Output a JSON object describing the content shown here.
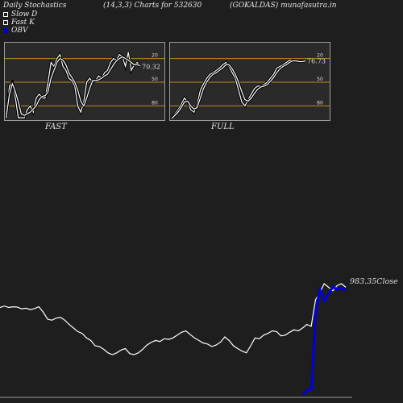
{
  "header": {
    "left": "Daily Stochastics",
    "center": "(14,3,3) Charts for 532630",
    "right": "(GOKALDAS) munafasutra.in"
  },
  "legend": [
    {
      "label": "Slow  D",
      "color": "#ffffff"
    },
    {
      "label": "Fast K",
      "color": "#ffffff"
    },
    {
      "label": "OBV",
      "color": "#0000cc"
    }
  ],
  "chart_data": [
    {
      "type": "line",
      "title": "FAST",
      "ylim": [
        0,
        100
      ],
      "gridlines": [
        20,
        50,
        80
      ],
      "tick_labels": [
        "80",
        "50",
        "20"
      ],
      "last_value_label": "70.32",
      "series": [
        {
          "name": "Fast K",
          "values": [
            5,
            45,
            50,
            30,
            5,
            5,
            5,
            15,
            20,
            12,
            30,
            35,
            30,
            30,
            50,
            75,
            70,
            80,
            85,
            70,
            65,
            55,
            52,
            45,
            20,
            12,
            25,
            50,
            55,
            50,
            52,
            58,
            55,
            62,
            65,
            75,
            80,
            78,
            85,
            82,
            70,
            88,
            65,
            72,
            75,
            70
          ]
        },
        {
          "name": "Slow D",
          "values": [
            8,
            35,
            48,
            38,
            25,
            10,
            8,
            10,
            12,
            16,
            20,
            28,
            32,
            33,
            38,
            55,
            65,
            75,
            80,
            78,
            72,
            62,
            56,
            50,
            40,
            26,
            20,
            30,
            42,
            52,
            52,
            53,
            55,
            58,
            60,
            66,
            72,
            77,
            80,
            82,
            80,
            78,
            75,
            72,
            72,
            71
          ]
        }
      ]
    },
    {
      "type": "line",
      "title": "FULL",
      "ylim": [
        0,
        100
      ],
      "gridlines": [
        20,
        50,
        80
      ],
      "tick_labels": [
        "80",
        "50",
        "20"
      ],
      "last_value_label": "76.73",
      "series": [
        {
          "name": "Fast K",
          "values": [
            5,
            10,
            15,
            22,
            30,
            25,
            15,
            12,
            22,
            40,
            48,
            55,
            60,
            62,
            65,
            68,
            72,
            75,
            70,
            62,
            55,
            40,
            25,
            20,
            28,
            35,
            42,
            45,
            45,
            47,
            50,
            55,
            60,
            68,
            70,
            72,
            75,
            78,
            78,
            77,
            76,
            77,
            77
          ]
        },
        {
          "name": "Slow D",
          "values": [
            4,
            8,
            12,
            18,
            25,
            26,
            20,
            16,
            18,
            30,
            42,
            50,
            56,
            60,
            62,
            65,
            68,
            72,
            72,
            67,
            60,
            50,
            38,
            28,
            26,
            30,
            36,
            41,
            44,
            45,
            47,
            51,
            56,
            62,
            67,
            70,
            72,
            75,
            77,
            77,
            76,
            76,
            77
          ]
        }
      ]
    },
    {
      "type": "line",
      "title": "",
      "last_value_label": "983.35Close",
      "series": [
        {
          "name": "Close",
          "values": [
            928,
            932,
            928,
            930,
            929,
            924,
            926,
            922,
            925,
            930,
            915,
            895,
            892,
            898,
            900,
            892,
            880,
            870,
            860,
            855,
            842,
            835,
            820,
            818,
            810,
            800,
            795,
            800,
            808,
            812,
            798,
            795,
            800,
            810,
            822,
            830,
            835,
            832,
            840,
            838,
            842,
            850,
            858,
            862,
            852,
            842,
            835,
            828,
            825,
            818,
            822,
            830,
            845,
            835,
            820,
            812,
            805,
            800,
            820,
            842,
            840,
            850,
            855,
            862,
            860,
            848,
            850,
            858,
            865,
            862,
            870,
            880,
            875,
            950,
            970,
            995,
            985,
            975,
            990,
            995,
            985
          ]
        },
        {
          "name": "OBV",
          "values": [
            null,
            null,
            null,
            null,
            null,
            null,
            null,
            null,
            null,
            null,
            null,
            null,
            null,
            null,
            null,
            null,
            null,
            null,
            null,
            null,
            null,
            null,
            null,
            null,
            null,
            null,
            null,
            null,
            null,
            null,
            null,
            null,
            null,
            null,
            null,
            null,
            null,
            null,
            null,
            null,
            null,
            null,
            null,
            null,
            null,
            null,
            null,
            null,
            null,
            null,
            null,
            null,
            null,
            null,
            null,
            null,
            null,
            null,
            null,
            null,
            null,
            null,
            null,
            null,
            null,
            null,
            null,
            null,
            null,
            null,
            -20,
            -15,
            -14,
            70,
            92,
            80,
            88,
            95,
            92,
            94,
            91
          ]
        }
      ]
    }
  ]
}
